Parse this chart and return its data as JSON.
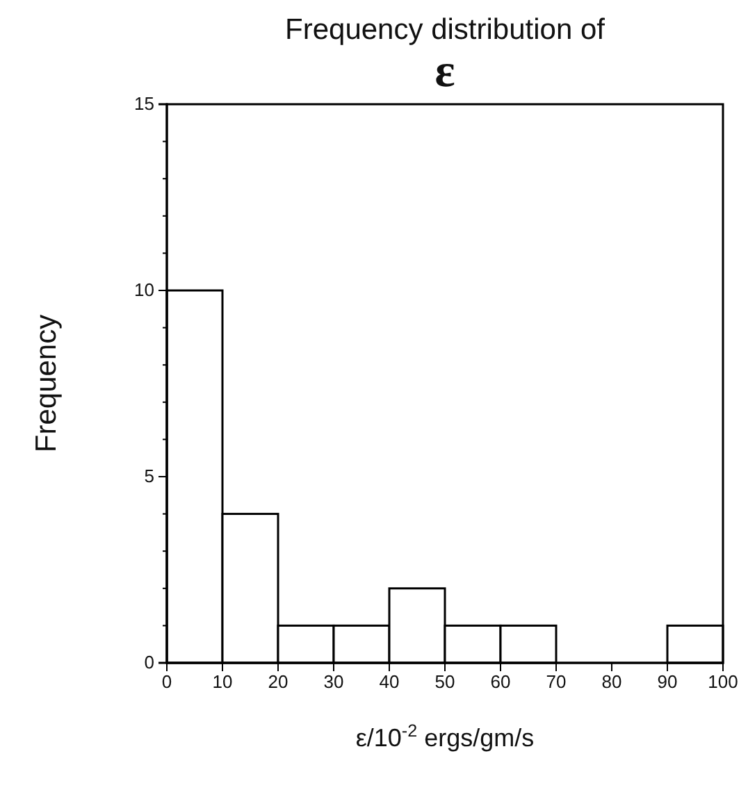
{
  "chart_data": {
    "type": "histogram",
    "title": "Frequency distribution of",
    "subtitle": "ε",
    "xlabel": "ε/10$^{-2}$ ergs/gm/s",
    "ylabel": "Frequency",
    "bins": [
      0,
      10,
      20,
      30,
      40,
      50,
      60,
      70,
      80,
      90,
      100
    ],
    "values": [
      10,
      4,
      1,
      1,
      2,
      1,
      1,
      0,
      0,
      1
    ],
    "color": "#ffffff",
    "xlim": [
      0,
      100
    ],
    "xticks": [
      0,
      10,
      20,
      30,
      40,
      50,
      60,
      70,
      80,
      90,
      100
    ],
    "ylim": [
      0,
      15
    ],
    "yticks": [
      0,
      {
        "value": 1,
        "label": null
      },
      {
        "value": 2,
        "label": null
      },
      {
        "value": 3,
        "label": null
      },
      {
        "value": 4,
        "label": null
      },
      5,
      {
        "value": 6,
        "label": null
      },
      {
        "value": 7,
        "label": null
      },
      {
        "value": 8,
        "label": null
      },
      {
        "value": 9,
        "label": null
      },
      10,
      {
        "value": 11,
        "label": null
      },
      {
        "value": 12,
        "label": null
      },
      {
        "value": 13,
        "label": null
      },
      {
        "value": 14,
        "label": null
      },
      15
    ],
    "grid": false
  }
}
